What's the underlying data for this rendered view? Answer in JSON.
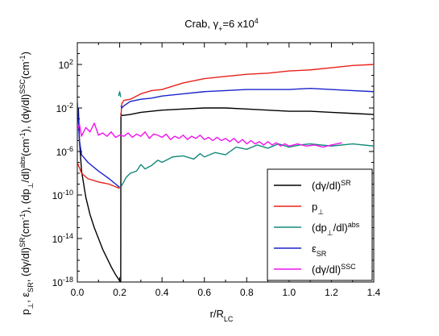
{
  "chart_data": {
    "type": "line",
    "title": "Crab, γ",
    "title_sub": "+",
    "title_rest": "=6 x10",
    "title_sup": "4",
    "xlabel": "r/R",
    "xlabel_sub": "LC",
    "ylabel_parts": [
      {
        "t": "p"
      },
      {
        "t": "⊥",
        "s": "sub"
      },
      {
        "t": ", ε"
      },
      {
        "t": "SR",
        "s": "sub"
      },
      {
        "t": ", (dγ/dl)"
      },
      {
        "t": "SR",
        "s": "sup"
      },
      {
        "t": "(cm"
      },
      {
        "t": "-1",
        "s": "sup"
      },
      {
        "t": "), (dp"
      },
      {
        "t": "⊥",
        "s": "sub"
      },
      {
        "t": "/dl)"
      },
      {
        "t": "abs",
        "s": "sup"
      },
      {
        "t": "(cm"
      },
      {
        "t": "-1",
        "s": "sup"
      },
      {
        "t": "), (dγ/dl)"
      },
      {
        "t": "SSC",
        "s": "sup"
      },
      {
        "t": "(cm"
      },
      {
        "t": "-1",
        "s": "sup"
      },
      {
        "t": ")"
      }
    ],
    "xlim": [
      0,
      1.4
    ],
    "ylim_log10": [
      -18,
      4
    ],
    "xscale": "linear",
    "yscale": "log",
    "grid": false,
    "legend_position": "bottom-right",
    "x_ticks": [
      "0.0",
      "0.2",
      "0.4",
      "0.6",
      "0.8",
      "1.0",
      "1.2",
      "1.4"
    ],
    "x_tick_values": [
      0,
      0.2,
      0.4,
      0.6,
      0.8,
      1.0,
      1.2,
      1.4
    ],
    "y_ticks": [
      {
        "base": "10",
        "exp": "2",
        "log": 2
      },
      {
        "base": "10",
        "exp": "-2",
        "log": -2
      },
      {
        "base": "10",
        "exp": "-6",
        "log": -6
      },
      {
        "base": "10",
        "exp": "-10",
        "log": -10
      },
      {
        "base": "10",
        "exp": "-14",
        "log": -14
      },
      {
        "base": "10",
        "exp": "-18",
        "log": -18
      }
    ],
    "series": [
      {
        "label": "(dγ/dl)",
        "label_sup": "SR",
        "color": "#000000",
        "segments": [
          [
            [
              0.005,
              -2.0
            ],
            [
              0.01,
              -5.0
            ],
            [
              0.02,
              -7.8
            ],
            [
              0.04,
              -10.2
            ],
            [
              0.06,
              -11.8
            ],
            [
              0.08,
              -13.0
            ],
            [
              0.1,
              -14.0
            ],
            [
              0.12,
              -15.0
            ],
            [
              0.14,
              -15.8
            ],
            [
              0.16,
              -16.6
            ],
            [
              0.18,
              -17.3
            ],
            [
              0.2,
              -17.9
            ],
            [
              0.205,
              -18.0
            ]
          ],
          [
            [
              0.205,
              -18.0
            ],
            [
              0.206,
              -2.5
            ],
            [
              0.21,
              -2.7
            ],
            [
              0.25,
              -2.6
            ],
            [
              0.3,
              -2.4
            ],
            [
              0.35,
              -2.3
            ],
            [
              0.4,
              -2.2
            ],
            [
              0.5,
              -2.1
            ],
            [
              0.6,
              -2.0
            ],
            [
              0.7,
              -2.0
            ],
            [
              0.8,
              -2.1
            ],
            [
              0.9,
              -2.2
            ],
            [
              1.0,
              -2.3
            ],
            [
              1.1,
              -2.3
            ],
            [
              1.2,
              -2.4
            ],
            [
              1.3,
              -2.5
            ],
            [
              1.4,
              -2.6
            ]
          ]
        ]
      },
      {
        "label": "p",
        "label_sub": "⊥",
        "color": "#e8211a",
        "segments": [
          [
            [
              0.0,
              -7.0
            ],
            [
              0.02,
              -8.0
            ],
            [
              0.05,
              -8.5
            ],
            [
              0.1,
              -8.8
            ],
            [
              0.15,
              -9.0
            ],
            [
              0.2,
              -9.4
            ]
          ],
          [
            [
              0.206,
              -2.8
            ],
            [
              0.21,
              -1.6
            ],
            [
              0.22,
              -1.3
            ],
            [
              0.25,
              -1.2
            ],
            [
              0.3,
              -0.7
            ],
            [
              0.35,
              -0.4
            ],
            [
              0.4,
              -0.3
            ],
            [
              0.5,
              0.3
            ],
            [
              0.6,
              0.7
            ],
            [
              0.7,
              0.9
            ],
            [
              0.8,
              1.1
            ],
            [
              0.9,
              1.2
            ],
            [
              1.0,
              1.4
            ],
            [
              1.1,
              1.5
            ],
            [
              1.2,
              1.7
            ],
            [
              1.3,
              1.9
            ],
            [
              1.4,
              2.0
            ]
          ]
        ]
      },
      {
        "label": "(dp",
        "label_sub": "⊥",
        "label_rest": "/dl)",
        "label_sup": "abs",
        "color": "#148a7b",
        "segments": [
          [
            [
              0.195,
              -0.9
            ],
            [
              0.2,
              -0.5
            ],
            [
              0.205,
              -1.0
            ]
          ],
          [
            [
              0.208,
              -9.2
            ],
            [
              0.23,
              -8.4
            ],
            [
              0.25,
              -8.0
            ],
            [
              0.28,
              -7.8
            ],
            [
              0.3,
              -7.2
            ],
            [
              0.32,
              -7.6
            ],
            [
              0.35,
              -7.3
            ],
            [
              0.38,
              -6.8
            ],
            [
              0.4,
              -7.0
            ],
            [
              0.45,
              -6.5
            ],
            [
              0.5,
              -6.4
            ],
            [
              0.55,
              -6.7
            ],
            [
              0.58,
              -6.2
            ],
            [
              0.6,
              -6.5
            ],
            [
              0.65,
              -6.1
            ],
            [
              0.7,
              -6.3
            ],
            [
              0.75,
              -5.6
            ],
            [
              0.8,
              -5.8
            ],
            [
              0.85,
              -5.4
            ],
            [
              0.9,
              -5.7
            ],
            [
              0.95,
              -5.3
            ],
            [
              1.0,
              -5.6
            ],
            [
              1.05,
              -5.4
            ],
            [
              1.1,
              -5.3
            ],
            [
              1.2,
              -5.5
            ],
            [
              1.3,
              -5.3
            ],
            [
              1.4,
              -5.5
            ]
          ]
        ]
      },
      {
        "label": "ε",
        "label_sub": "SR",
        "color": "#1a23c9",
        "segments": [
          [
            [
              0.0,
              -1.4
            ],
            [
              0.01,
              -5.0
            ],
            [
              0.02,
              -6.3
            ],
            [
              0.05,
              -7.0
            ],
            [
              0.1,
              -7.8
            ],
            [
              0.15,
              -8.5
            ],
            [
              0.2,
              -9.3
            ]
          ],
          [
            [
              0.206,
              -1.8
            ],
            [
              0.21,
              -2.0
            ],
            [
              0.22,
              -1.8
            ],
            [
              0.25,
              -1.4
            ],
            [
              0.3,
              -1.2
            ],
            [
              0.35,
              -1.1
            ],
            [
              0.4,
              -0.9
            ],
            [
              0.5,
              -0.7
            ],
            [
              0.6,
              -0.5
            ],
            [
              0.7,
              -0.4
            ],
            [
              0.8,
              -0.3
            ],
            [
              0.9,
              -0.3
            ],
            [
              1.0,
              -0.3
            ],
            [
              1.1,
              -0.2
            ],
            [
              1.2,
              -0.3
            ],
            [
              1.3,
              -0.4
            ],
            [
              1.4,
              -0.5
            ]
          ]
        ]
      },
      {
        "label": "(dγ/dl)",
        "label_sup": "SSC",
        "color": "#ee12ee",
        "segments": [
          [
            [
              0.0,
              -4.0
            ],
            [
              0.01,
              -3.5
            ],
            [
              0.02,
              -4.6
            ],
            [
              0.04,
              -3.8
            ],
            [
              0.06,
              -4.2
            ],
            [
              0.08,
              -3.4
            ],
            [
              0.1,
              -4.5
            ],
            [
              0.12,
              -4.3
            ],
            [
              0.14,
              -4.6
            ],
            [
              0.16,
              -4.2
            ],
            [
              0.18,
              -4.7
            ],
            [
              0.2,
              -4.5
            ],
            [
              0.22,
              -4.6
            ],
            [
              0.24,
              -4.3
            ],
            [
              0.26,
              -4.7
            ],
            [
              0.28,
              -4.4
            ],
            [
              0.3,
              -4.6
            ],
            [
              0.32,
              -4.2
            ],
            [
              0.34,
              -4.8
            ],
            [
              0.36,
              -4.4
            ],
            [
              0.38,
              -4.5
            ],
            [
              0.4,
              -4.7
            ],
            [
              0.42,
              -4.4
            ],
            [
              0.44,
              -4.9
            ],
            [
              0.46,
              -4.6
            ],
            [
              0.48,
              -4.8
            ],
            [
              0.5,
              -4.5
            ],
            [
              0.52,
              -4.9
            ],
            [
              0.54,
              -4.6
            ],
            [
              0.56,
              -4.8
            ],
            [
              0.58,
              -4.5
            ],
            [
              0.6,
              -4.9
            ],
            [
              0.62,
              -4.7
            ],
            [
              0.64,
              -5.0
            ],
            [
              0.66,
              -4.7
            ],
            [
              0.68,
              -5.0
            ],
            [
              0.7,
              -4.8
            ],
            [
              0.72,
              -5.1
            ],
            [
              0.74,
              -4.8
            ],
            [
              0.76,
              -5.2
            ],
            [
              0.78,
              -4.9
            ],
            [
              0.8,
              -5.3
            ],
            [
              0.82,
              -5.0
            ],
            [
              0.84,
              -5.3
            ],
            [
              0.86,
              -5.1
            ],
            [
              0.88,
              -5.4
            ],
            [
              0.9,
              -5.1
            ],
            [
              0.92,
              -5.4
            ],
            [
              0.94,
              -5.2
            ],
            [
              0.96,
              -5.5
            ],
            [
              0.98,
              -5.3
            ],
            [
              1.0,
              -5.5
            ],
            [
              1.04,
              -5.3
            ],
            [
              1.08,
              -5.5
            ],
            [
              1.12,
              -5.4
            ],
            [
              1.16,
              -5.6
            ],
            [
              1.2,
              -5.4
            ],
            [
              1.25,
              -5.2
            ]
          ]
        ]
      }
    ]
  }
}
